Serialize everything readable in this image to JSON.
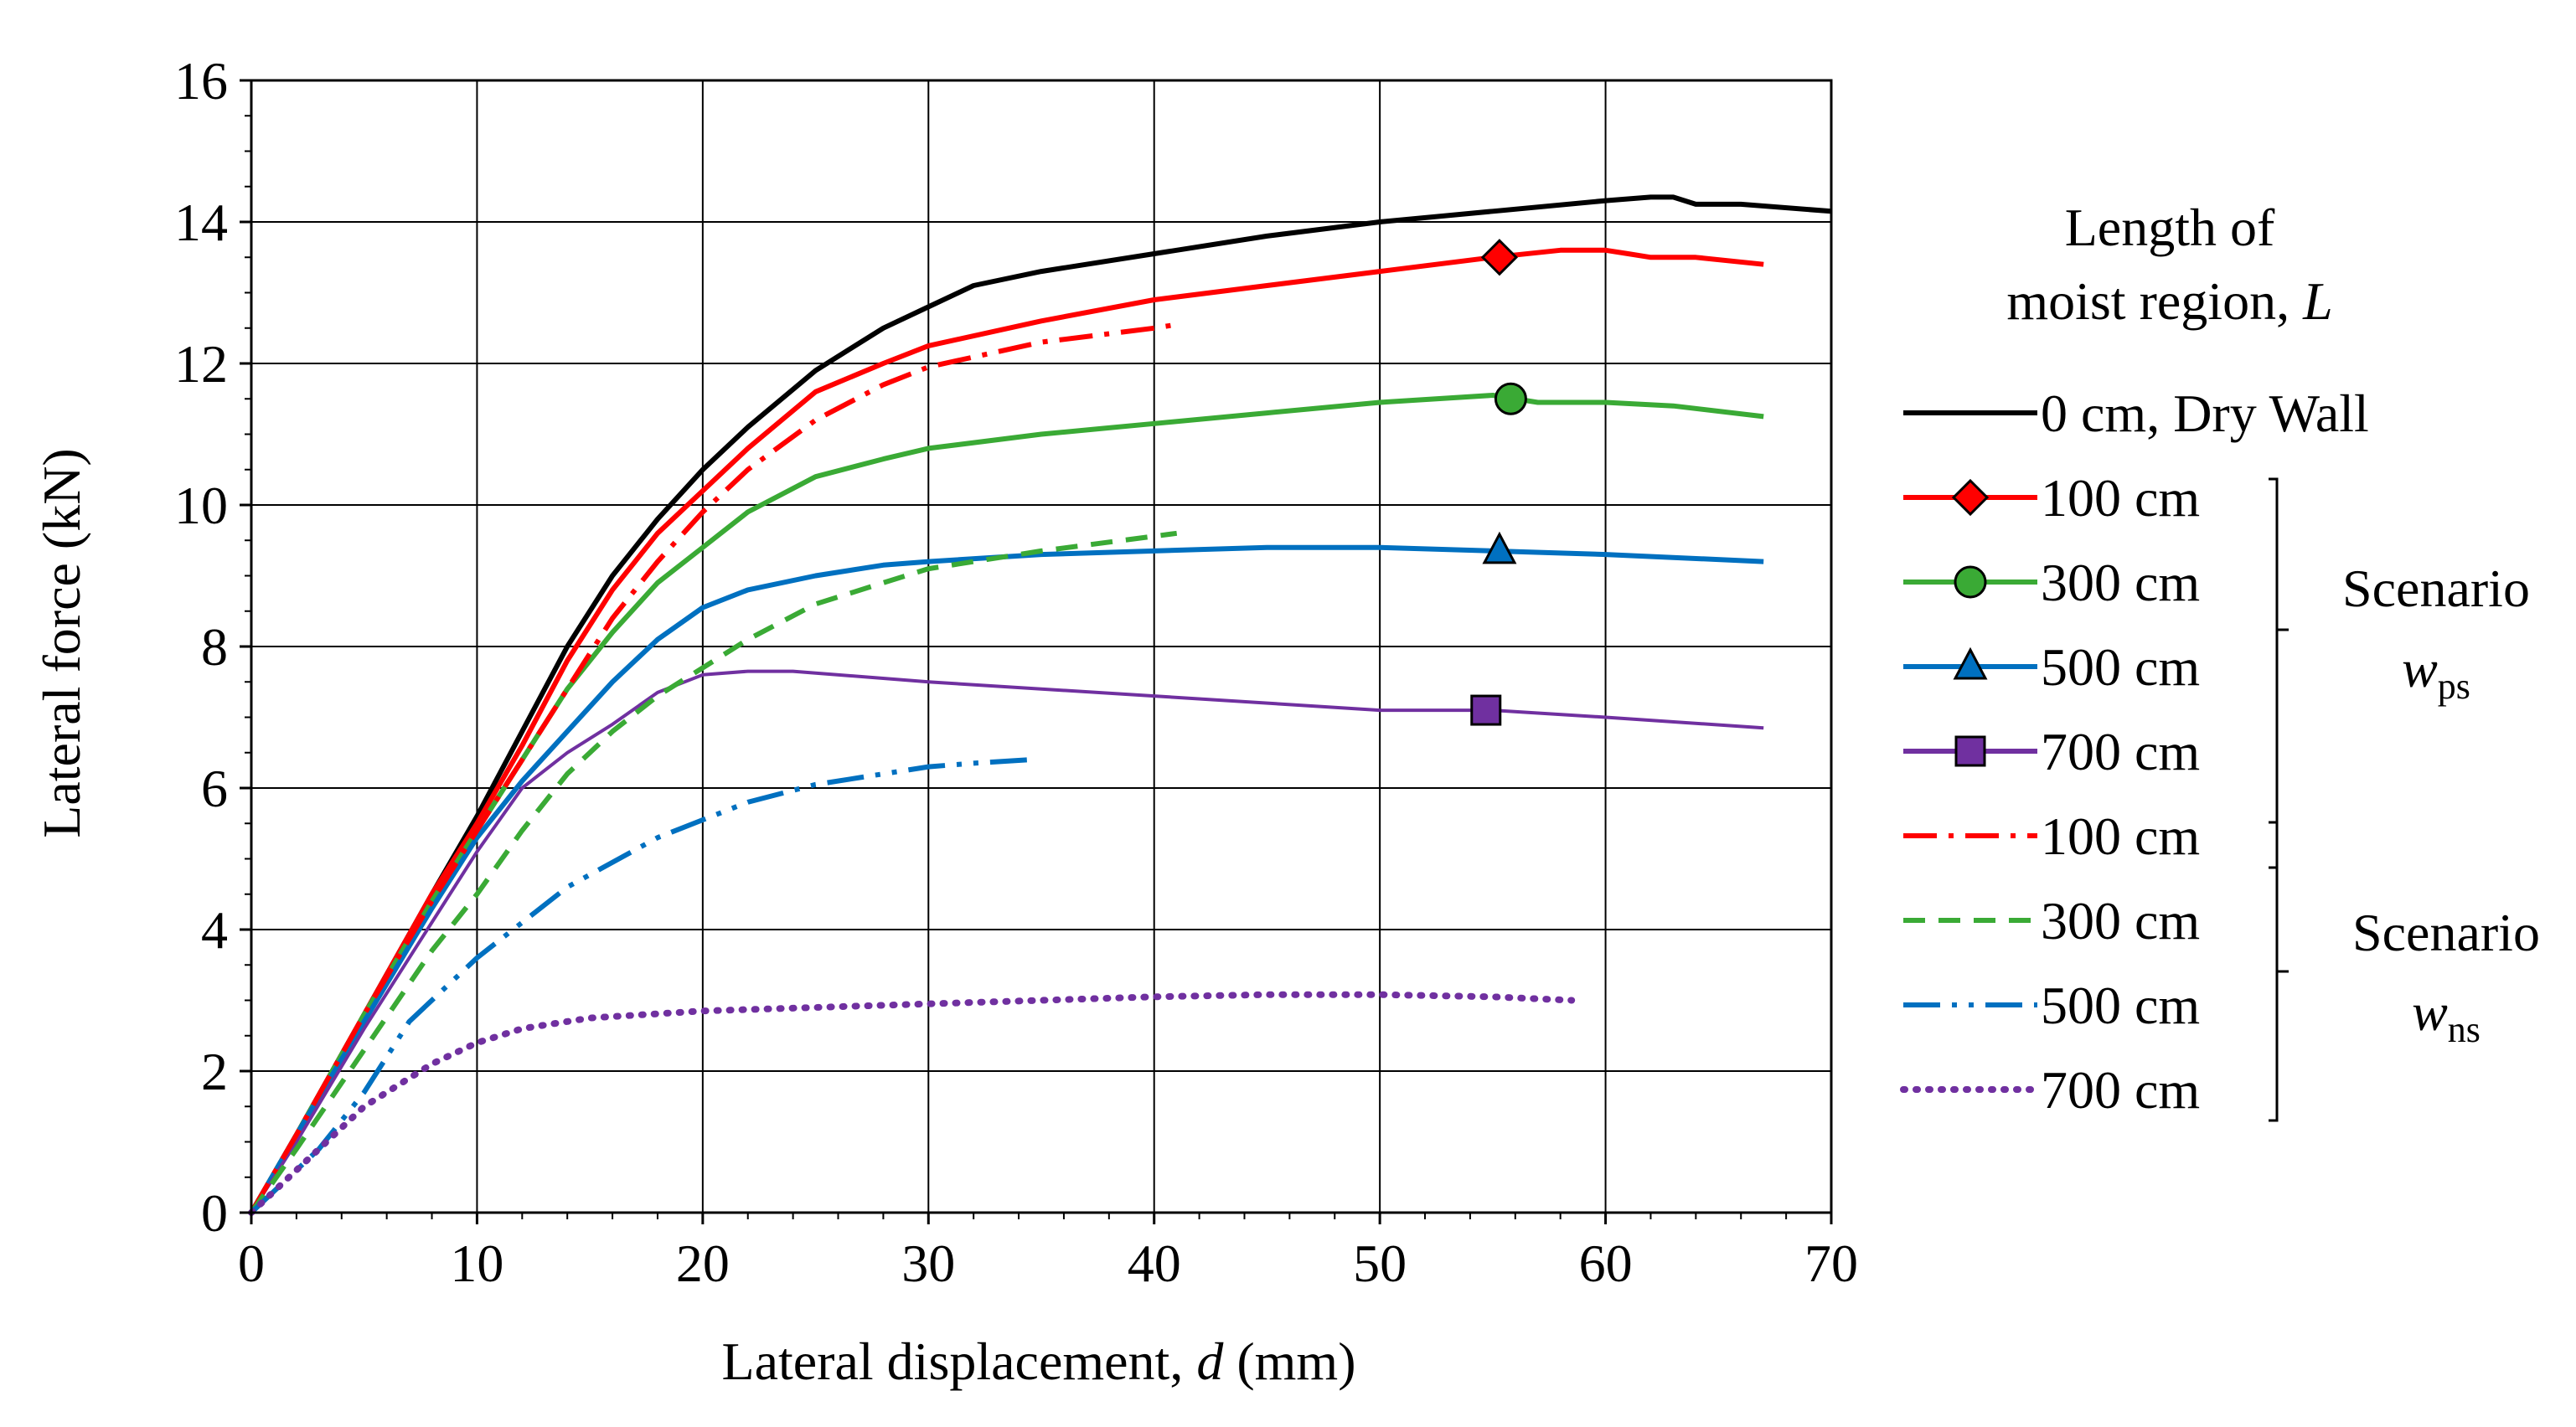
{
  "chart_data": {
    "type": "line",
    "xlabel_prefix": "Lateral displacement, ",
    "xlabel_var": "d",
    "xlabel_suffix": " (mm)",
    "ylabel": "Lateral force (kN)",
    "xlim": [
      0,
      70
    ],
    "ylim": [
      0,
      16
    ],
    "xticks": [
      0,
      10,
      20,
      30,
      40,
      50,
      60,
      70
    ],
    "yticks": [
      0,
      2,
      4,
      6,
      8,
      10,
      12,
      14,
      16
    ],
    "grid": true,
    "legend": {
      "title_line1": "Length of",
      "title_line2_prefix": "moist region, ",
      "title_line2_var": "L",
      "group_ps_label": "Scenario",
      "group_ps_var": "w",
      "group_ps_sub": "ps",
      "group_ns_label": "Scenario",
      "group_ns_var": "w",
      "group_ns_sub": "ns"
    },
    "series": [
      {
        "name": "0 cm, Dry Wall",
        "group": "dry",
        "color": "#000000",
        "dash": "solid",
        "marker": null,
        "x": [
          0,
          2,
          5,
          8,
          10,
          12,
          14,
          16,
          18,
          20,
          22,
          25,
          28,
          30,
          32,
          35,
          40,
          45,
          50,
          55,
          60,
          62,
          63,
          64,
          66,
          70
        ],
        "y": [
          0,
          1.1,
          2.8,
          4.5,
          5.6,
          6.8,
          8.0,
          9.0,
          9.8,
          10.5,
          11.1,
          11.9,
          12.5,
          12.8,
          13.1,
          13.3,
          13.55,
          13.8,
          14.0,
          14.15,
          14.3,
          14.35,
          14.35,
          14.25,
          14.25,
          14.15
        ]
      },
      {
        "name": "100 cm",
        "group": "ps",
        "color": "#ff0000",
        "dash": "solid",
        "marker": "diamond",
        "marker_at": [
          55.3,
          13.5
        ],
        "x": [
          0,
          2,
          5,
          8,
          10,
          12,
          14,
          16,
          18,
          20,
          22,
          25,
          28,
          30,
          35,
          40,
          45,
          50,
          55,
          58,
          60,
          61,
          62,
          64,
          67
        ],
        "y": [
          0,
          1.1,
          2.8,
          4.5,
          5.5,
          6.6,
          7.8,
          8.8,
          9.6,
          10.2,
          10.8,
          11.6,
          12.0,
          12.25,
          12.6,
          12.9,
          13.1,
          13.3,
          13.5,
          13.6,
          13.6,
          13.55,
          13.5,
          13.5,
          13.4
        ]
      },
      {
        "name": "300 cm",
        "group": "ps",
        "color": "#3aaa35",
        "dash": "solid",
        "marker": "circle",
        "marker_at": [
          55.8,
          11.5
        ],
        "x": [
          0,
          2,
          5,
          8,
          10,
          12,
          14,
          16,
          18,
          20,
          22,
          25,
          28,
          30,
          35,
          40,
          45,
          50,
          55,
          57,
          60,
          63,
          67
        ],
        "y": [
          0,
          1.1,
          2.8,
          4.4,
          5.4,
          6.4,
          7.4,
          8.2,
          8.9,
          9.4,
          9.9,
          10.4,
          10.65,
          10.8,
          11.0,
          11.15,
          11.3,
          11.45,
          11.55,
          11.45,
          11.45,
          11.4,
          11.25
        ]
      },
      {
        "name": "500 cm",
        "group": "ps",
        "color": "#0070c0",
        "dash": "solid",
        "marker": "triangle",
        "marker_at": [
          55.3,
          9.35
        ],
        "x": [
          0,
          2,
          5,
          8,
          10,
          12,
          14,
          16,
          18,
          20,
          22,
          25,
          28,
          30,
          35,
          40,
          45,
          50,
          55,
          60,
          67
        ],
        "y": [
          0,
          1.1,
          2.7,
          4.3,
          5.3,
          6.1,
          6.8,
          7.5,
          8.1,
          8.55,
          8.8,
          9.0,
          9.15,
          9.2,
          9.3,
          9.35,
          9.4,
          9.4,
          9.35,
          9.3,
          9.2
        ]
      },
      {
        "name": "700 cm",
        "group": "ps",
        "color": "#7030a0",
        "dash": "solid",
        "marker": "square",
        "marker_at": [
          54.7,
          7.1
        ],
        "x": [
          0,
          2,
          5,
          8,
          10,
          12,
          14,
          16,
          18,
          20,
          22,
          24,
          30,
          40,
          50,
          55,
          60,
          67
        ],
        "y": [
          0,
          1.0,
          2.6,
          4.1,
          5.1,
          6.0,
          6.5,
          6.9,
          7.35,
          7.6,
          7.65,
          7.65,
          7.5,
          7.3,
          7.1,
          7.1,
          7.0,
          6.85
        ]
      },
      {
        "name": "100 cm",
        "group": "ns",
        "color": "#ff0000",
        "dash": "dashdot",
        "marker": null,
        "x": [
          0,
          2,
          5,
          8,
          10,
          12,
          14,
          16,
          18,
          20,
          22,
          25,
          28,
          30,
          35,
          40,
          41
        ],
        "y": [
          0,
          1.1,
          2.8,
          4.4,
          5.4,
          6.4,
          7.4,
          8.4,
          9.2,
          9.9,
          10.5,
          11.2,
          11.7,
          11.95,
          12.3,
          12.5,
          12.55
        ]
      },
      {
        "name": "300 cm",
        "group": "ns",
        "color": "#3aaa35",
        "dash": "dash",
        "marker": null,
        "x": [
          0,
          2,
          5,
          8,
          10,
          12,
          14,
          16,
          18,
          20,
          22,
          25,
          28,
          30,
          35,
          41
        ],
        "y": [
          0,
          0.9,
          2.3,
          3.7,
          4.5,
          5.4,
          6.2,
          6.8,
          7.3,
          7.7,
          8.1,
          8.6,
          8.9,
          9.1,
          9.35,
          9.6
        ]
      },
      {
        "name": "500 cm",
        "group": "ns",
        "color": "#0070c0",
        "dash": "dashdotdot",
        "marker": null,
        "x": [
          0,
          3,
          5,
          7,
          10,
          14,
          18,
          20,
          22,
          25,
          28,
          30,
          32,
          34.5
        ],
        "y": [
          0,
          0.9,
          1.7,
          2.7,
          3.6,
          4.6,
          5.3,
          5.55,
          5.8,
          6.05,
          6.2,
          6.3,
          6.35,
          6.4
        ]
      },
      {
        "name": "700 cm",
        "group": "ns",
        "color": "#7030a0",
        "dash": "dot",
        "marker": null,
        "x": [
          0,
          2,
          5,
          8,
          10,
          12,
          15,
          20,
          25,
          30,
          35,
          40,
          45,
          50,
          55,
          58.5
        ],
        "y": [
          0,
          0.6,
          1.5,
          2.1,
          2.4,
          2.6,
          2.75,
          2.85,
          2.9,
          2.95,
          3.0,
          3.05,
          3.08,
          3.08,
          3.05,
          3.0
        ]
      }
    ]
  }
}
